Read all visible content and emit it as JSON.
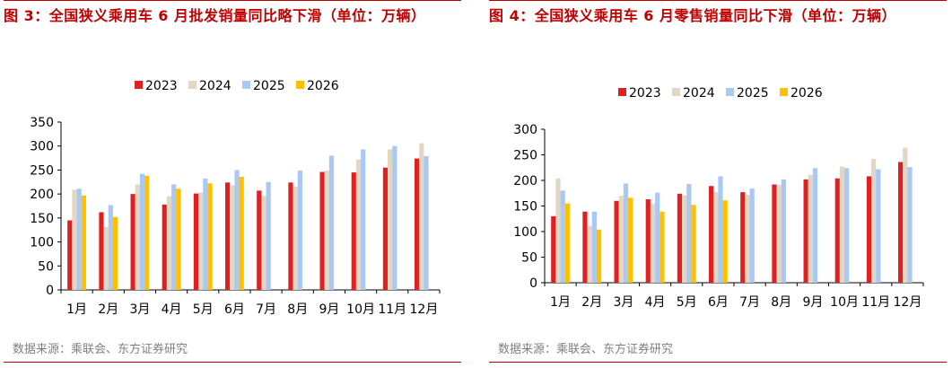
{
  "colors": {
    "title": "#c00000",
    "y2023": "#e02020",
    "y2024": "#e2d6c4",
    "y2025": "#a9c8f5",
    "y2026": "#ffc000",
    "source": "#7f7f7f"
  },
  "chart_data": [
    {
      "type": "bar",
      "title": "图 3：全国狭义乘用车 6 月批发销量同比略下滑（单位：万辆）",
      "source": "数据来源：乘联会、东方证券研究",
      "categories": [
        "1月",
        "2月",
        "3月",
        "4月",
        "5月",
        "6月",
        "7月",
        "8月",
        "9月",
        "10月",
        "11月",
        "12月"
      ],
      "ylim": [
        0,
        350
      ],
      "yticks": [
        "0",
        "50",
        "100",
        "150",
        "200",
        "250",
        "300",
        "350"
      ],
      "legend_position": "top-center",
      "grid": false,
      "series": [
        {
          "name": "2023",
          "values": [
            145,
            162,
            200,
            178,
            201,
            224,
            207,
            224,
            246,
            245,
            255,
            274
          ]
        },
        {
          "name": "2024",
          "values": [
            209,
            131,
            220,
            195,
            203,
            218,
            196,
            215,
            249,
            272,
            293,
            306
          ]
        },
        {
          "name": "2025",
          "values": [
            211,
            177,
            242,
            220,
            232,
            250,
            225,
            249,
            280,
            293,
            300,
            279
          ]
        },
        {
          "name": "2026",
          "values": [
            197,
            152,
            238,
            211,
            222,
            236,
            null,
            null,
            null,
            null,
            null,
            null
          ]
        }
      ]
    },
    {
      "type": "bar",
      "title": "图 4：全国狭义乘用车 6 月零售销量同比下滑（单位：万辆）",
      "source": "数据来源：乘联会、东方证券研究",
      "categories": [
        "1月",
        "2月",
        "3月",
        "4月",
        "5月",
        "6月",
        "7月",
        "8月",
        "9月",
        "10月",
        "11月",
        "12月"
      ],
      "ylim": [
        0,
        300
      ],
      "yticks": [
        "0",
        "50",
        "100",
        "150",
        "200",
        "250",
        "300"
      ],
      "legend_position": "top-center",
      "grid": false,
      "series": [
        {
          "name": "2023",
          "values": [
            130,
            139,
            160,
            163,
            174,
            189,
            177,
            192,
            202,
            204,
            208,
            236
          ]
        },
        {
          "name": "2024",
          "values": [
            204,
            111,
            170,
            154,
            171,
            177,
            172,
            191,
            211,
            227,
            242,
            264
          ]
        },
        {
          "name": "2025",
          "values": [
            180,
            139,
            194,
            176,
            193,
            208,
            184,
            202,
            224,
            224,
            222,
            226
          ]
        },
        {
          "name": "2026",
          "values": [
            155,
            104,
            166,
            139,
            152,
            161,
            null,
            null,
            null,
            null,
            null,
            null
          ]
        }
      ]
    }
  ]
}
